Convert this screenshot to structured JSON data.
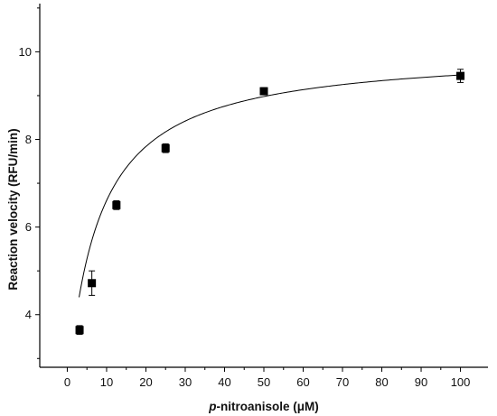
{
  "chart_data": {
    "type": "scatter",
    "xlabel_prefix": "p",
    "xlabel_rest": "-nitroanisole (μM)",
    "ylabel": "Reaction velocity (RFU/min)",
    "xlim": [
      -7,
      107
    ],
    "ylim": [
      2.8,
      11.1
    ],
    "x_ticks": [
      0,
      10,
      20,
      30,
      40,
      50,
      60,
      70,
      80,
      90,
      100
    ],
    "y_ticks": [
      4,
      6,
      8,
      10
    ],
    "series": [
      {
        "points": [
          {
            "x": 3.125,
            "y": 3.65,
            "err": 0.1
          },
          {
            "x": 6.25,
            "y": 4.72,
            "err": 0.28
          },
          {
            "x": 12.5,
            "y": 6.5,
            "err": 0.1
          },
          {
            "x": 25,
            "y": 7.8,
            "err": 0.1
          },
          {
            "x": 50,
            "y": 9.1,
            "err": 0.08
          },
          {
            "x": 100,
            "y": 9.45,
            "err": 0.15
          }
        ]
      }
    ],
    "fit": {
      "model": "Michaelis-Menten with offset",
      "Vmax": 7.79,
      "Km": 7.88,
      "offset": 2.25,
      "x_start": 3.0,
      "x_end": 100
    }
  }
}
